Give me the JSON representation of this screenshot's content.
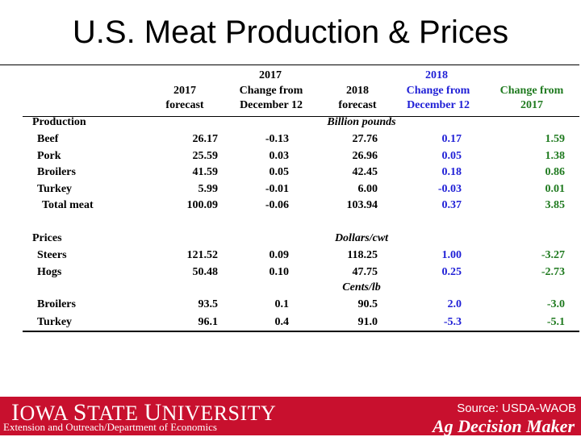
{
  "title": "U.S. Meat Production & Prices",
  "header": {
    "col1": [
      "2017",
      "forecast"
    ],
    "col2_top": "2017",
    "col2": [
      "Change from",
      "December 12"
    ],
    "col3": [
      "2018",
      "forecast"
    ],
    "col4_top": "2018",
    "col4": [
      "Change from",
      "December 12"
    ],
    "col5": [
      "Change from",
      "2017"
    ]
  },
  "production": {
    "label": "Production",
    "unit": "Billion pounds",
    "rows": [
      {
        "name": "Beef",
        "v": [
          "26.17",
          "-0.13",
          "27.76",
          "0.17",
          "1.59"
        ]
      },
      {
        "name": "Pork",
        "v": [
          "25.59",
          "0.03",
          "26.96",
          "0.05",
          "1.38"
        ]
      },
      {
        "name": "Broilers",
        "v": [
          "41.59",
          "0.05",
          "42.45",
          "0.18",
          "0.86"
        ]
      },
      {
        "name": "Turkey",
        "v": [
          "5.99",
          "-0.01",
          "6.00",
          "-0.03",
          "0.01"
        ]
      },
      {
        "name": "Total meat",
        "v": [
          "100.09",
          "-0.06",
          "103.94",
          "0.37",
          "3.85"
        ]
      }
    ]
  },
  "prices": {
    "label": "Prices",
    "unit1": "Dollars/cwt",
    "rows1": [
      {
        "name": "Steers",
        "v": [
          "121.52",
          "0.09",
          "118.25",
          "1.00",
          "-3.27"
        ]
      },
      {
        "name": "Hogs",
        "v": [
          "50.48",
          "0.10",
          "47.75",
          "0.25",
          "-2.73"
        ]
      }
    ],
    "unit2": "Cents/lb",
    "rows2": [
      {
        "name": "Broilers",
        "v": [
          "93.5",
          "0.1",
          "90.5",
          "2.0",
          "-3.0"
        ]
      },
      {
        "name": "Turkey",
        "v": [
          "96.1",
          "0.4",
          "91.0",
          "-5.3",
          "-5.1"
        ]
      }
    ]
  },
  "footer": {
    "university_first": "I",
    "university_rest": "OWA",
    "university_s": "S",
    "university_tate": "TATE",
    "university_u": "U",
    "university_niversity": "NIVERSITY",
    "extension": "Extension and Outreach/Department of Economics",
    "source": "Source: USDA-WAOB",
    "brand": "Ag Decision Maker"
  },
  "colors": {
    "accent": "#c8102e",
    "blue": "#1f1fd6",
    "green": "#1f7a1f"
  }
}
